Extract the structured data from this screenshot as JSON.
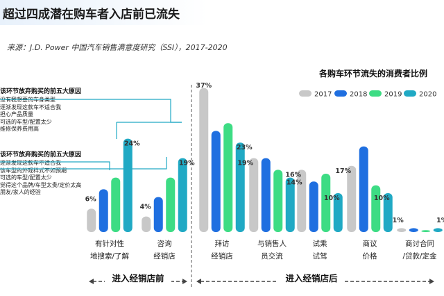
{
  "header": {
    "title": "超过四成潜在购车者入店前已流失",
    "source": "来源：J.D. Power 中国汽车销售满意度研究（SSI），2017-2020"
  },
  "reasons": [
    {
      "heading": "该环节放弃购买的前五大原因",
      "items": [
        "没有我想要的车身类型",
        "逐渐发现这款车不适合我",
        "担心产品质量",
        "可选的车型/配置太少",
        "维修保养费用高"
      ]
    },
    {
      "heading": "该环节放弃购买的前五大原因",
      "items": [
        "逐渐发现这款车不适合我",
        "该车型的外观样式不如预期",
        "可选的车型/配置太少",
        "觉得这个品牌/车型太贵/定价太高",
        "朋友/家人的经验"
      ]
    }
  ],
  "phases": [
    {
      "label": "进入经销店前"
    },
    {
      "label": "进入经销店后"
    }
  ],
  "chart_data": {
    "type": "bar",
    "title": "各购车环节流失的消费者比例",
    "categories": [
      [
        "有针对性",
        "地搜索/了解"
      ],
      [
        "咨询",
        "经销店"
      ],
      [
        "拜访",
        "经销店"
      ],
      [
        "与销售人",
        "员交流"
      ],
      [
        "试乘",
        "试驾"
      ],
      [
        "商议",
        "价格"
      ],
      [
        "商讨合同",
        "/贷款/定金"
      ]
    ],
    "series": [
      {
        "name": "2017",
        "color": "#c8c8c8",
        "values": [
          6,
          4,
          37,
          19,
          16,
          17,
          1
        ]
      },
      {
        "name": "2018",
        "color": "#1f6fe0",
        "values": [
          11,
          9,
          26,
          19,
          13,
          22,
          1
        ]
      },
      {
        "name": "2019",
        "color": "#3ddc84",
        "values": [
          14,
          14,
          28,
          16,
          15,
          12,
          0.5
        ]
      },
      {
        "name": "2020",
        "color": "#20a9c4",
        "values": [
          24,
          19,
          23,
          14,
          10,
          10,
          1
        ]
      }
    ],
    "data_labels": [
      {
        "category": 0,
        "series": 0,
        "text": "6%"
      },
      {
        "category": 0,
        "series": 3,
        "text": "24%"
      },
      {
        "category": 1,
        "series": 0,
        "text": "4%"
      },
      {
        "category": 1,
        "series": 3,
        "text": "19%"
      },
      {
        "category": 2,
        "series": 0,
        "text": "37%"
      },
      {
        "category": 2,
        "series": 3,
        "text": "23%"
      },
      {
        "category": 3,
        "series": 0,
        "text": "19%"
      },
      {
        "category": 3,
        "series": 3,
        "text": "14%"
      },
      {
        "category": 4,
        "series": 0,
        "text": "16%"
      },
      {
        "category": 4,
        "series": 3,
        "text": "10%"
      },
      {
        "category": 5,
        "series": 0,
        "text": "17%"
      },
      {
        "category": 5,
        "series": 3,
        "text": "10%"
      },
      {
        "category": 6,
        "series": 0,
        "text": "1%"
      },
      {
        "category": 6,
        "series": 3,
        "text": "1%"
      }
    ],
    "ylim": [
      0,
      40
    ],
    "legend": "top-right",
    "grid": false
  }
}
